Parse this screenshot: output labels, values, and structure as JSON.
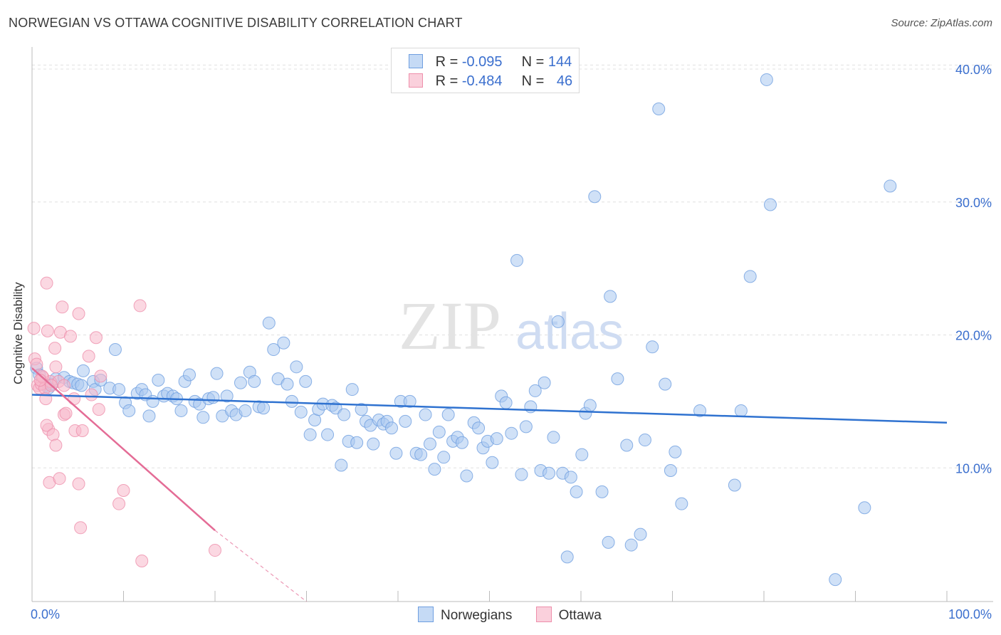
{
  "title": "NORWEGIAN VS OTTAWA COGNITIVE DISABILITY CORRELATION CHART",
  "source": "Source: ZipAtlas.com",
  "watermark": {
    "zip": "ZIP",
    "atlas": "atlas"
  },
  "legend_top": [
    {
      "r_label": "R =",
      "r_value": "-0.095",
      "n_label": "N =",
      "n_value": "144"
    },
    {
      "r_label": "R =",
      "r_value": "-0.484",
      "n_label": "N =",
      "n_value": "46"
    }
  ],
  "colors": {
    "norwegians_fill": "#a9c8f0",
    "norwegians_stroke": "#6f9fe0",
    "norwegians_line": "#2f72d0",
    "ottawa_fill": "#f7b8ca",
    "ottawa_stroke": "#ee8fab",
    "ottawa_line": "#e46c96",
    "tick_label": "#3b6fce",
    "grid": "#e0e0e0"
  },
  "chart_data": {
    "type": "scatter",
    "title": "NORWEGIAN VS OTTAWA COGNITIVE DISABILITY CORRELATION CHART",
    "xlabel": "",
    "ylabel": "Cognitive Disability",
    "xlim": [
      0,
      100
    ],
    "ylim": [
      0,
      40.5
    ],
    "x_tick_labels": [
      "0.0%",
      "100.0%"
    ],
    "y_tick_labels": [
      "10.0%",
      "20.0%",
      "30.0%",
      "40.0%"
    ],
    "y_ticks": [
      10,
      20,
      30,
      40
    ],
    "grid": true,
    "legend_position": "bottom-center",
    "series": [
      {
        "name": "Norwegians",
        "trend": {
          "x": [
            0,
            100
          ],
          "y": [
            15.5,
            13.4
          ]
        },
        "points": [
          [
            0.5,
            17.5
          ],
          [
            0.8,
            17.0
          ],
          [
            1.5,
            16.2
          ],
          [
            1.8,
            16.0
          ],
          [
            2.2,
            16.3
          ],
          [
            2.6,
            16.7
          ],
          [
            3.5,
            16.8
          ],
          [
            4.1,
            16.5
          ],
          [
            4.5,
            16.4
          ],
          [
            5.0,
            16.3
          ],
          [
            5.4,
            16.2
          ],
          [
            5.6,
            17.3
          ],
          [
            6.7,
            16.5
          ],
          [
            6.9,
            15.9
          ],
          [
            7.5,
            16.6
          ],
          [
            8.5,
            16.0
          ],
          [
            9.1,
            18.9
          ],
          [
            9.5,
            15.9
          ],
          [
            10.2,
            14.9
          ],
          [
            10.6,
            14.3
          ],
          [
            11.5,
            15.6
          ],
          [
            12.0,
            15.9
          ],
          [
            12.4,
            15.5
          ],
          [
            12.8,
            13.9
          ],
          [
            13.2,
            15.0
          ],
          [
            13.8,
            16.6
          ],
          [
            14.4,
            15.4
          ],
          [
            14.8,
            15.6
          ],
          [
            15.4,
            15.4
          ],
          [
            15.8,
            15.2
          ],
          [
            16.3,
            14.3
          ],
          [
            16.7,
            16.5
          ],
          [
            17.2,
            17.0
          ],
          [
            17.8,
            15.0
          ],
          [
            18.3,
            14.8
          ],
          [
            18.7,
            13.8
          ],
          [
            19.3,
            15.2
          ],
          [
            19.8,
            15.3
          ],
          [
            20.2,
            17.1
          ],
          [
            20.8,
            13.9
          ],
          [
            21.3,
            15.4
          ],
          [
            21.8,
            14.3
          ],
          [
            22.3,
            14.0
          ],
          [
            22.8,
            16.4
          ],
          [
            23.3,
            14.3
          ],
          [
            23.8,
            17.2
          ],
          [
            24.3,
            16.5
          ],
          [
            24.8,
            14.6
          ],
          [
            25.3,
            14.5
          ],
          [
            25.9,
            20.9
          ],
          [
            26.4,
            18.9
          ],
          [
            26.9,
            16.7
          ],
          [
            27.5,
            19.4
          ],
          [
            27.9,
            16.3
          ],
          [
            28.4,
            15.0
          ],
          [
            28.9,
            17.6
          ],
          [
            29.4,
            14.2
          ],
          [
            29.9,
            16.5
          ],
          [
            30.4,
            12.5
          ],
          [
            30.9,
            13.6
          ],
          [
            31.3,
            14.4
          ],
          [
            31.8,
            14.8
          ],
          [
            32.3,
            12.5
          ],
          [
            32.8,
            14.7
          ],
          [
            33.2,
            14.5
          ],
          [
            33.8,
            10.2
          ],
          [
            34.1,
            14.0
          ],
          [
            34.6,
            12.0
          ],
          [
            35.0,
            15.9
          ],
          [
            35.5,
            11.9
          ],
          [
            36.0,
            14.4
          ],
          [
            36.5,
            13.5
          ],
          [
            37.0,
            13.2
          ],
          [
            37.3,
            11.8
          ],
          [
            37.9,
            13.6
          ],
          [
            38.4,
            13.3
          ],
          [
            38.8,
            13.5
          ],
          [
            39.3,
            13.0
          ],
          [
            39.8,
            11.1
          ],
          [
            40.3,
            15.0
          ],
          [
            40.8,
            13.5
          ],
          [
            41.3,
            15.0
          ],
          [
            42.0,
            11.1
          ],
          [
            42.5,
            11.0
          ],
          [
            43.0,
            14.0
          ],
          [
            43.5,
            11.8
          ],
          [
            44.0,
            9.9
          ],
          [
            44.5,
            12.7
          ],
          [
            45.0,
            10.8
          ],
          [
            45.5,
            14.0
          ],
          [
            46.0,
            12.0
          ],
          [
            46.5,
            12.3
          ],
          [
            47.0,
            11.9
          ],
          [
            47.5,
            9.4
          ],
          [
            48.3,
            13.4
          ],
          [
            48.8,
            13.0
          ],
          [
            49.3,
            11.5
          ],
          [
            49.8,
            12.0
          ],
          [
            50.3,
            10.4
          ],
          [
            50.8,
            12.2
          ],
          [
            51.3,
            15.4
          ],
          [
            51.8,
            14.9
          ],
          [
            52.4,
            12.6
          ],
          [
            53.0,
            25.6
          ],
          [
            53.5,
            9.5
          ],
          [
            54.0,
            13.1
          ],
          [
            54.5,
            14.6
          ],
          [
            55.0,
            15.8
          ],
          [
            55.6,
            9.8
          ],
          [
            56.0,
            16.4
          ],
          [
            56.5,
            9.6
          ],
          [
            57.0,
            12.3
          ],
          [
            57.5,
            21.0
          ],
          [
            58.0,
            9.6
          ],
          [
            58.5,
            3.3
          ],
          [
            58.9,
            9.3
          ],
          [
            59.5,
            8.2
          ],
          [
            60.1,
            11.0
          ],
          [
            60.5,
            14.1
          ],
          [
            61.0,
            14.7
          ],
          [
            61.5,
            30.4
          ],
          [
            62.3,
            8.2
          ],
          [
            63.0,
            4.4
          ],
          [
            63.2,
            22.9
          ],
          [
            64.0,
            16.7
          ],
          [
            65.0,
            11.7
          ],
          [
            65.5,
            4.2
          ],
          [
            66.5,
            5.0
          ],
          [
            67.0,
            12.1
          ],
          [
            67.8,
            19.1
          ],
          [
            68.5,
            37.0
          ],
          [
            69.2,
            16.3
          ],
          [
            69.8,
            9.8
          ],
          [
            70.3,
            11.2
          ],
          [
            71.0,
            7.3
          ],
          [
            73.0,
            14.3
          ],
          [
            76.8,
            8.7
          ],
          [
            77.5,
            14.3
          ],
          [
            78.5,
            24.4
          ],
          [
            80.3,
            39.2
          ],
          [
            80.7,
            29.8
          ],
          [
            87.8,
            1.6
          ],
          [
            91.0,
            7.0
          ],
          [
            93.8,
            31.2
          ]
        ]
      },
      {
        "name": "Ottawa",
        "trend": {
          "x": [
            0,
            20
          ],
          "y": [
            17.5,
            5.3
          ]
        },
        "trend_dashed": {
          "x": [
            20,
            30
          ],
          "y": [
            5.3,
            -0.8
          ]
        },
        "points": [
          [
            0.2,
            20.5
          ],
          [
            0.3,
            18.2
          ],
          [
            0.5,
            17.8
          ],
          [
            0.6,
            16.2
          ],
          [
            0.8,
            16.0
          ],
          [
            1.0,
            16.3
          ],
          [
            1.2,
            16.8
          ],
          [
            1.4,
            16.0
          ],
          [
            1.5,
            15.2
          ],
          [
            1.8,
            12.9
          ],
          [
            1.6,
            13.2
          ],
          [
            1.6,
            23.9
          ],
          [
            1.7,
            20.3
          ],
          [
            1.9,
            8.9
          ],
          [
            2.0,
            16.5
          ],
          [
            2.3,
            12.5
          ],
          [
            2.5,
            19.0
          ],
          [
            2.6,
            17.6
          ],
          [
            2.6,
            11.7
          ],
          [
            2.9,
            16.5
          ],
          [
            3.0,
            9.2
          ],
          [
            3.1,
            20.2
          ],
          [
            3.3,
            22.1
          ],
          [
            3.5,
            14.0
          ],
          [
            3.5,
            16.2
          ],
          [
            4.2,
            19.9
          ],
          [
            4.6,
            15.2
          ],
          [
            4.7,
            12.8
          ],
          [
            5.1,
            21.6
          ],
          [
            5.1,
            8.8
          ],
          [
            5.3,
            5.5
          ],
          [
            5.5,
            12.8
          ],
          [
            6.2,
            18.4
          ],
          [
            6.5,
            15.5
          ],
          [
            7.0,
            19.8
          ],
          [
            7.3,
            14.4
          ],
          [
            7.5,
            16.9
          ],
          [
            9.5,
            7.3
          ],
          [
            10.0,
            8.3
          ],
          [
            11.8,
            22.2
          ],
          [
            12.0,
            3.0
          ],
          [
            20.0,
            3.8
          ],
          [
            3.7,
            14.1
          ],
          [
            1.1,
            16.9
          ],
          [
            2.1,
            16.2
          ],
          [
            0.9,
            16.6
          ]
        ]
      }
    ]
  },
  "bottom_legend": [
    {
      "label": "Norwegians"
    },
    {
      "label": "Ottawa"
    }
  ]
}
